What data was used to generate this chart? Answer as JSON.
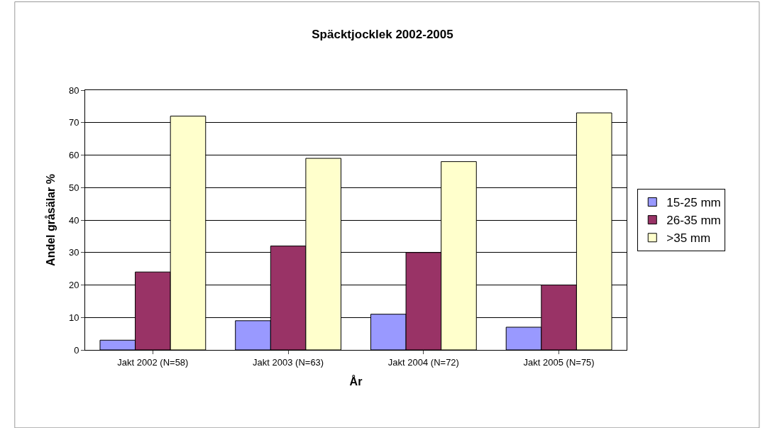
{
  "chart_data": {
    "type": "bar",
    "title": "Späcktjocklek 2002-2005",
    "xlabel": "År",
    "ylabel": "Andel gråsälar %",
    "categories": [
      "Jakt 2002 (N=58)",
      "Jakt 2003 (N=63)",
      "Jakt 2004 (N=72)",
      "Jakt 2005 (N=75)"
    ],
    "series": [
      {
        "name": "15-25 mm",
        "color": "#9999ff",
        "values": [
          3,
          9,
          11,
          7
        ]
      },
      {
        "name": "26-35 mm",
        "color": "#993366",
        "values": [
          24,
          32,
          30,
          20
        ]
      },
      {
        "name": ">35 mm",
        "color": "#ffffcc",
        "values": [
          72,
          59,
          58,
          73
        ]
      }
    ],
    "ylim": [
      0,
      80
    ],
    "yticks": [
      0,
      10,
      20,
      30,
      40,
      50,
      60,
      70,
      80
    ],
    "grid": "y",
    "legend": "right"
  }
}
